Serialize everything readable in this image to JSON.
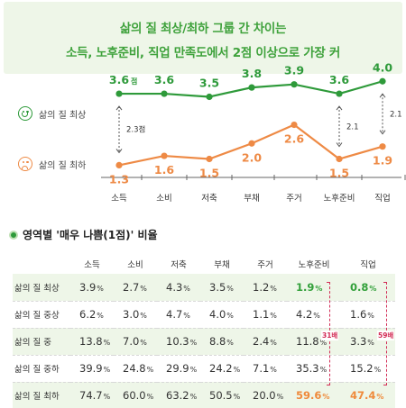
{
  "header": {
    "line1": "삶의 질 최상/최하 그룹 간 차이는",
    "line2": "소득, 노후준비, 직업 만족도에서 2점 이상으로 가장 커"
  },
  "colors": {
    "best": "#2e9a3a",
    "worst": "#ee8a45",
    "accent": "#d22b55",
    "banner": "#eef6e8"
  },
  "chart_data": {
    "type": "line",
    "categories": [
      "소득",
      "소비",
      "저축",
      "부채",
      "주거",
      "노후준비",
      "직업"
    ],
    "series": [
      {
        "name": "삶의 질 최상",
        "values": [
          3.6,
          3.6,
          3.5,
          3.8,
          3.9,
          3.6,
          4.0
        ]
      },
      {
        "name": "삶의 질 최하",
        "values": [
          1.3,
          1.6,
          1.5,
          2.0,
          2.6,
          1.5,
          1.9
        ]
      }
    ],
    "value_labels": {
      "best": [
        "3.6",
        "3.6",
        "3.5",
        "3.8",
        "3.9",
        "3.6",
        "4.0"
      ],
      "worst": [
        "1.3",
        "1.6",
        "1.5",
        "2.0",
        "2.6",
        "1.5",
        "1.9"
      ]
    },
    "first_unit": "점",
    "gap_annotations": [
      {
        "category": "소득",
        "label": "2.3점"
      },
      {
        "category": "노후준비",
        "label": "2.1"
      },
      {
        "category": "직업",
        "label": "2.1"
      }
    ],
    "ylim": [
      0.5,
      4.5
    ]
  },
  "section": {
    "title": "영역별 '매우 나쁨(1점)' 비율"
  },
  "table": {
    "columns": [
      "소득",
      "소비",
      "저축",
      "부채",
      "주거",
      "노후준비",
      "직업"
    ],
    "unit": "%",
    "rows": [
      {
        "label": "삶의 질 최상",
        "values": [
          "3.9",
          "2.7",
          "4.3",
          "3.5",
          "1.2",
          "1.9",
          "0.8"
        ]
      },
      {
        "label": "삶의 질 중상",
        "values": [
          "6.2",
          "3.0",
          "4.7",
          "4.0",
          "1.1",
          "4.2",
          "1.6"
        ]
      },
      {
        "label": "삶의 질 중",
        "values": [
          "13.8",
          "7.0",
          "10.3",
          "8.8",
          "2.4",
          "11.8",
          "3.3"
        ]
      },
      {
        "label": "삶의 질 중하",
        "values": [
          "39.9",
          "24.8",
          "29.9",
          "24.2",
          "7.1",
          "35.3",
          "15.2"
        ]
      },
      {
        "label": "삶의 질 최하",
        "values": [
          "74.7",
          "60.0",
          "63.2",
          "50.5",
          "20.0",
          "59.6",
          "47.4"
        ]
      }
    ],
    "ratio_labels": [
      "31배",
      "59배"
    ]
  }
}
